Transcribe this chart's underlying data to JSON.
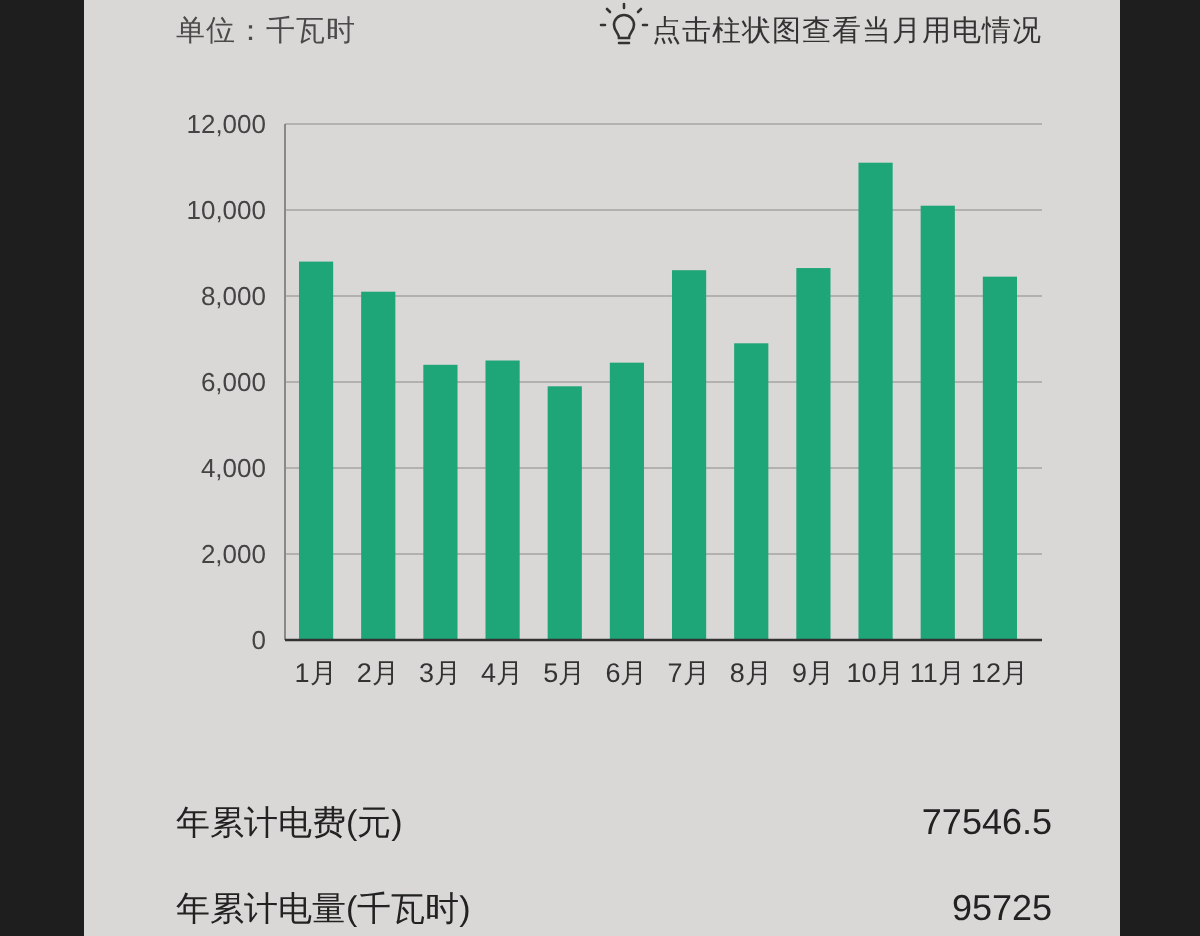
{
  "chart_data": {
    "type": "bar",
    "ylabel": "单位：千瓦时",
    "subtitle": "点击柱状图查看当月用电情况",
    "categories": [
      "1月",
      "2月",
      "3月",
      "4月",
      "5月",
      "6月",
      "7月",
      "8月",
      "9月",
      "10月",
      "11月",
      "12月"
    ],
    "values": [
      8800,
      8100,
      6400,
      6500,
      5900,
      6450,
      8600,
      6900,
      8650,
      11100,
      10100,
      8450
    ],
    "color": "#1fa678",
    "ylim": [
      0,
      12000
    ],
    "yticks": [
      0,
      {
        "value": 2000,
        "label": "2,000"
      },
      {
        "value": 4000,
        "label": "4,000"
      },
      {
        "value": 6000,
        "label": "6,000"
      },
      {
        "value": 8000,
        "label": "8,000"
      },
      {
        "value": 10000,
        "label": "10,000"
      },
      {
        "value": 12000,
        "label": "12,000"
      }
    ],
    "grid": "y",
    "annotations": [
      "年累计电费(元)",
      "77546.5",
      "年累计电量(千瓦时)",
      "95725"
    ]
  }
}
